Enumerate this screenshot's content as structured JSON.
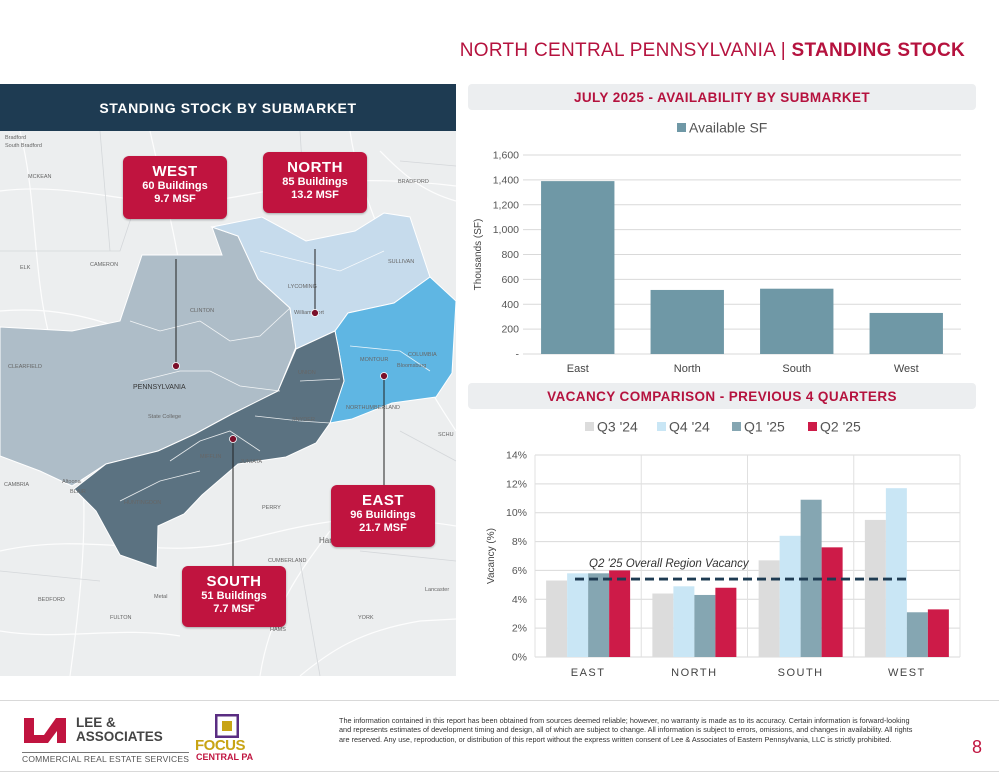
{
  "header": {
    "prefix": "NORTH CENTRAL PENNSYLVANIA",
    "separator": " | ",
    "section": "STANDING STOCK"
  },
  "map": {
    "title": "STANDING STOCK BY SUBMARKET",
    "colors": {
      "west": "#aebdc8",
      "north": "#c6dbec",
      "east": "#5fb6e3",
      "south": "#5b7281"
    },
    "callouts": {
      "west": {
        "name": "WEST",
        "buildings": "60 Buildings",
        "msf": "9.7 MSF"
      },
      "north": {
        "name": "NORTH",
        "buildings": "85 Buildings",
        "msf": "13.2 MSF"
      },
      "east": {
        "name": "EAST",
        "buildings": "96 Buildings",
        "msf": "21.7 MSF"
      },
      "south": {
        "name": "SOUTH",
        "buildings": "51 Buildings",
        "msf": "7.7 MSF"
      }
    },
    "labels": {
      "bradford": "Bradford",
      "south_bradford": "South Bradford",
      "mckean": "MCKEAN",
      "bradford_county": "BRADFORD",
      "elk": "ELK",
      "cameron": "CAMERON",
      "sullivan": "SULLIVAN",
      "lycoming": "LYCOMING",
      "williamsport": "Williamsport",
      "clinton": "CLINTON",
      "montour": "MONTOUR",
      "columbia": "COLUMBIA",
      "bloomsburg": "Bloomsburg",
      "clearfield": "CLEARFIELD",
      "pennsylvania": "PENNSYLVANIA",
      "union": "UNION",
      "state_college": "State College",
      "snyder": "SNYDER",
      "northumberland": "NORTHUMBERLAND",
      "schu": "SCHU",
      "mifflin": "MIFFLIN",
      "juniata": "JUNIATA",
      "altoona": "Altoona",
      "blair": "BLAIR",
      "cambria": "CAMBRIA",
      "huntingdon": "HUNTINGDON",
      "perry": "PERRY",
      "cumberland": "CUMBERLAND",
      "bedford": "BEDFORD",
      "metal": "Metal",
      "fulton": "FULTON",
      "york": "YORK",
      "lancaster": "Lancaster",
      "harrisburg": "Har",
      "hams": "HAMS"
    }
  },
  "availability_chart": {
    "title": "JULY 2025 - AVAILABILITY BY SUBMARKET",
    "color": "#6f98a6",
    "chart_data": {
      "type": "bar",
      "categories": [
        "East",
        "North",
        "South",
        "West"
      ],
      "series": [
        {
          "name": "Available SF",
          "values": [
            1390,
            515,
            525,
            330
          ]
        }
      ],
      "ylabel": "Thousands (SF)",
      "ylim": [
        0,
        1600
      ],
      "yticks": [
        "-",
        "200",
        "400",
        "600",
        "800",
        "1,000",
        "1,200",
        "1,400",
        "1,600"
      ],
      "legend": "top-center",
      "grid": true
    }
  },
  "vacancy_chart": {
    "title": "VACANCY COMPARISON - PREVIOUS 4 QUARTERS",
    "colors": [
      "#dcdcdc",
      "#c9e6f5",
      "#85a6b2",
      "#cd1b48"
    ],
    "chart_data": {
      "type": "bar",
      "categories": [
        "EAST",
        "NORTH",
        "SOUTH",
        "WEST"
      ],
      "series": [
        {
          "name": "Q3 '24",
          "values": [
            5.3,
            4.4,
            6.7,
            9.5
          ]
        },
        {
          "name": "Q4 '24",
          "values": [
            5.8,
            4.9,
            8.4,
            11.7
          ]
        },
        {
          "name": "Q1 '25",
          "values": [
            5.8,
            4.3,
            10.9,
            3.1
          ]
        },
        {
          "name": "Q2 '25",
          "values": [
            6.0,
            4.8,
            7.6,
            3.3
          ]
        }
      ],
      "ylabel": "Vacancy (%)",
      "ylim": [
        0,
        14
      ],
      "yticks": [
        "0%",
        "2%",
        "4%",
        "6%",
        "8%",
        "10%",
        "12%",
        "14%"
      ],
      "reference_line": {
        "label": "Q2 '25 Overall Region Vacancy",
        "value": 5.4
      },
      "legend": "top-center",
      "grid": true
    }
  },
  "footer": {
    "brand_initials": "LA",
    "brand_name_1": "LEE &",
    "brand_name_2": "ASSOCIATES",
    "brand_tagline": "COMMERCIAL REAL ESTATE SERVICES",
    "partner_name": "FOCUS",
    "partner_sub": "CENTRAL PA",
    "disclaimer": "The information contained in this report has been obtained from sources deemed reliable; however, no warranty is made as to its accuracy. Certain information is forward-looking and represents estimates of development timing and design, all of which are subject to change. All information is subject to errors, omissions, and changes in availability. All rights are reserved. Any use, reproduction, or distribution of this report without the express written consent of Lee & Associates of Eastern Pennsylvania, LLC is strictly prohibited.",
    "page_number": "8"
  }
}
